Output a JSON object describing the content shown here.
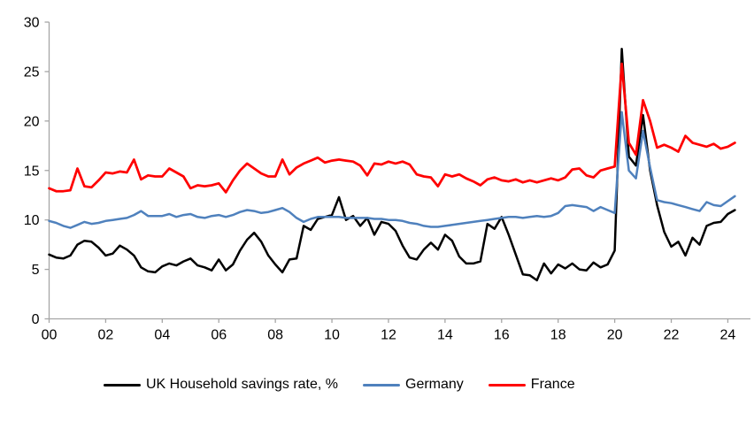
{
  "chart_data": {
    "type": "line",
    "title": "",
    "subtitle": "",
    "legend_position": "bottom",
    "grid": false,
    "x_axis": {
      "domain": [
        2000,
        2024.8
      ],
      "tick_labels": [
        "00",
        "02",
        "04",
        "06",
        "08",
        "10",
        "12",
        "14",
        "16",
        "18",
        "20",
        "22",
        "24"
      ],
      "tick_values": [
        2000,
        2002,
        2004,
        2006,
        2008,
        2010,
        2012,
        2014,
        2016,
        2018,
        2020,
        2022,
        2024
      ],
      "unit": "year, quarterly observations"
    },
    "y_axis": {
      "domain": [
        0,
        30
      ],
      "ticks": [
        0,
        5,
        10,
        15,
        20,
        25,
        30
      ]
    },
    "x_start": 2000,
    "x_step": 0.25,
    "axis_color": "#a6a6a6",
    "text_color": "#000000",
    "series": [
      {
        "name": "UK Household savings rate, %",
        "color": "#000000",
        "stroke_width": 2.5,
        "values": [
          6.5,
          6.2,
          6.1,
          6.4,
          7.5,
          7.9,
          7.8,
          7.2,
          6.4,
          6.6,
          7.4,
          7.0,
          6.4,
          5.2,
          4.8,
          4.7,
          5.3,
          5.6,
          5.4,
          5.8,
          6.1,
          5.4,
          5.2,
          4.9,
          6.0,
          4.9,
          5.5,
          6.9,
          8.0,
          8.7,
          7.8,
          6.4,
          5.5,
          4.7,
          6.0,
          6.1,
          9.4,
          9.0,
          10.1,
          10.3,
          10.5,
          12.3,
          10.0,
          10.4,
          9.4,
          10.2,
          8.5,
          9.8,
          9.6,
          8.9,
          7.4,
          6.2,
          6.0,
          7.0,
          7.7,
          7.0,
          8.5,
          7.9,
          6.3,
          5.6,
          5.6,
          5.8,
          9.6,
          9.1,
          10.3,
          8.5,
          6.5,
          4.5,
          4.4,
          3.9,
          5.6,
          4.6,
          5.5,
          5.1,
          5.6,
          5.0,
          4.9,
          5.7,
          5.2,
          5.5,
          6.9,
          27.3,
          16.4,
          15.5,
          20.6,
          15.0,
          11.5,
          8.8,
          7.3,
          7.8,
          6.4,
          8.2,
          7.5,
          9.4,
          9.7,
          9.8,
          10.6,
          11.0
        ]
      },
      {
        "name": "Germany",
        "color": "#4f81bd",
        "stroke_width": 2.5,
        "values": [
          9.9,
          9.7,
          9.4,
          9.2,
          9.5,
          9.8,
          9.6,
          9.7,
          9.9,
          10.0,
          10.1,
          10.2,
          10.5,
          10.9,
          10.4,
          10.4,
          10.4,
          10.6,
          10.3,
          10.5,
          10.6,
          10.3,
          10.2,
          10.4,
          10.5,
          10.3,
          10.5,
          10.8,
          11.0,
          10.9,
          10.7,
          10.8,
          11.0,
          11.2,
          10.8,
          10.2,
          9.8,
          10.1,
          10.3,
          10.3,
          10.3,
          10.3,
          10.2,
          10.2,
          10.2,
          10.2,
          10.1,
          10.1,
          10.0,
          10.0,
          9.9,
          9.7,
          9.6,
          9.4,
          9.3,
          9.3,
          9.4,
          9.5,
          9.6,
          9.7,
          9.8,
          9.9,
          10.0,
          10.1,
          10.2,
          10.3,
          10.3,
          10.2,
          10.3,
          10.4,
          10.3,
          10.4,
          10.7,
          11.4,
          11.5,
          11.4,
          11.3,
          10.9,
          11.3,
          11.0,
          10.7,
          20.9,
          15.0,
          14.2,
          19.0,
          15.3,
          12.0,
          11.8,
          11.7,
          11.5,
          11.3,
          11.1,
          10.9,
          11.8,
          11.5,
          11.4,
          11.9,
          12.4
        ]
      },
      {
        "name": "France",
        "color": "#ff0000",
        "stroke_width": 2.75,
        "values": [
          13.2,
          12.9,
          12.9,
          13.0,
          15.2,
          13.4,
          13.3,
          14.0,
          14.8,
          14.7,
          14.9,
          14.8,
          16.1,
          14.1,
          14.5,
          14.4,
          14.4,
          15.2,
          14.8,
          14.4,
          13.2,
          13.5,
          13.4,
          13.5,
          13.7,
          12.8,
          14.0,
          15.0,
          15.7,
          15.2,
          14.7,
          14.4,
          14.4,
          16.1,
          14.6,
          15.3,
          15.7,
          16.0,
          16.3,
          15.8,
          16.0,
          16.1,
          16.0,
          15.9,
          15.5,
          14.5,
          15.7,
          15.6,
          15.9,
          15.7,
          15.9,
          15.6,
          14.6,
          14.4,
          14.3,
          13.4,
          14.6,
          14.4,
          14.6,
          14.2,
          13.9,
          13.5,
          14.1,
          14.3,
          14.0,
          13.9,
          14.1,
          13.8,
          14.0,
          13.8,
          14.0,
          14.2,
          14.0,
          14.3,
          15.1,
          15.2,
          14.5,
          14.3,
          15.0,
          15.2,
          15.4,
          25.8,
          17.8,
          16.6,
          22.1,
          20.0,
          17.3,
          17.6,
          17.3,
          16.9,
          18.5,
          17.8,
          17.6,
          17.4,
          17.7,
          17.2,
          17.4,
          17.8
        ]
      }
    ]
  },
  "legend": {
    "items": [
      {
        "label": "UK Household savings rate, %"
      },
      {
        "label": "Germany"
      },
      {
        "label": "France"
      }
    ]
  }
}
